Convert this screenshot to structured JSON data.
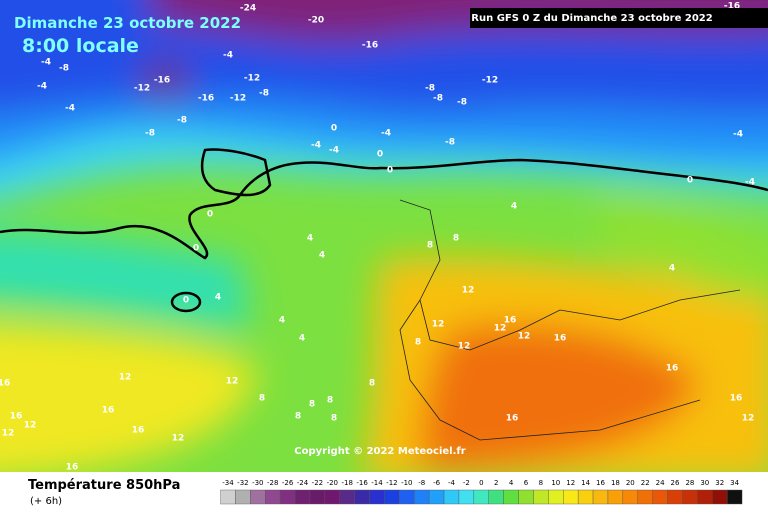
{
  "header": {
    "title": "Dimanche 23 octobre 2022",
    "time": "8:00 locale",
    "run": "Run GFS 0 Z du Dimanche 23 octobre 2022"
  },
  "copyright": "Copyright © 2022 Meteociel.fr",
  "footer": {
    "title": "Température 850hPa",
    "step": "(+ 6h)"
  },
  "map_labels": [
    -24,
    -20,
    -16,
    -16,
    -4,
    -12,
    -16,
    -12,
    -16,
    -12,
    -8,
    -8,
    -4,
    -4,
    -4,
    -8,
    -8,
    -12,
    -8,
    -8,
    -8,
    -4,
    -8,
    0,
    -4,
    -4,
    0,
    0,
    0,
    -4,
    -4,
    0,
    0,
    4,
    4,
    0,
    4,
    4,
    4,
    8,
    8,
    4,
    4,
    12,
    12,
    12,
    8,
    16,
    12,
    12,
    16,
    16,
    12,
    12,
    8,
    8,
    8,
    8,
    8,
    8,
    12,
    16,
    16,
    16,
    12,
    12,
    16,
    16,
    16,
    16,
    12
  ],
  "legend": {
    "ticks": [
      -34,
      -32,
      -30,
      -28,
      -26,
      -24,
      -22,
      -20,
      -18,
      -16,
      -14,
      -12,
      -10,
      -8,
      -6,
      -4,
      -2,
      0,
      2,
      4,
      6,
      8,
      10,
      12,
      14,
      16,
      18,
      20,
      22,
      24,
      26,
      28,
      30,
      32,
      34
    ],
    "colors": [
      "#d0d0d0",
      "#b0b0b0",
      "#a070a0",
      "#904890",
      "#803080",
      "#702070",
      "#6a1a6a",
      "#701870",
      "#5a2a8a",
      "#3a2aa8",
      "#2a30d0",
      "#1a40e0",
      "#2060f0",
      "#2080f8",
      "#20a0f8",
      "#30c8f8",
      "#40e0f0",
      "#40e8c0",
      "#40e080",
      "#60e040",
      "#90e030",
      "#c0e828",
      "#e0f020",
      "#f8e818",
      "#f8d010",
      "#f8b810",
      "#f8a008",
      "#f88808",
      "#f07008",
      "#e85808",
      "#d84008",
      "#c83008",
      "#b02008",
      "#901008",
      "#101010"
    ]
  }
}
